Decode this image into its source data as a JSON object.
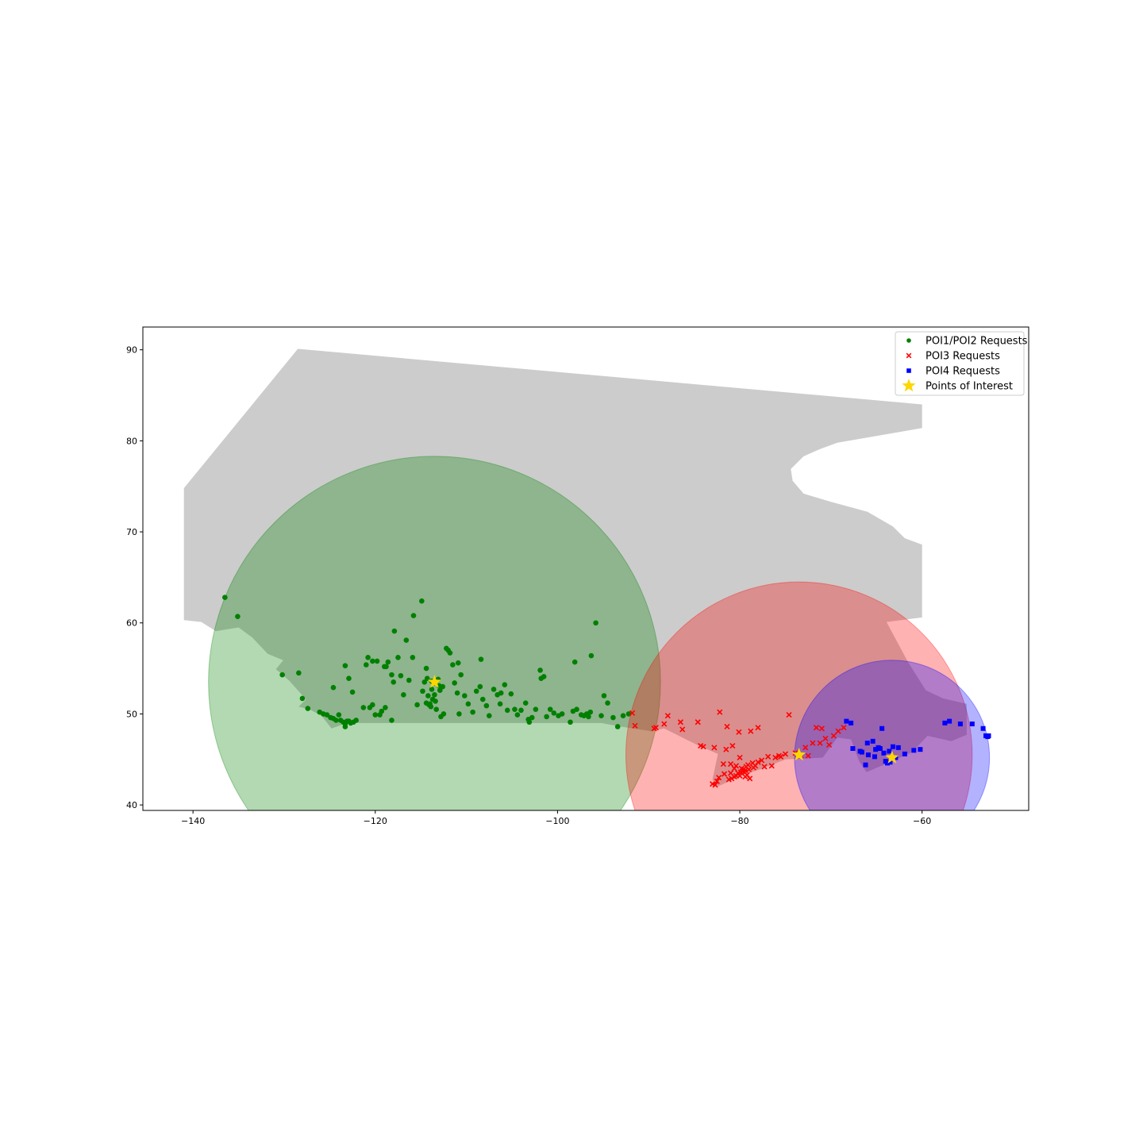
{
  "chart_data": {
    "type": "scatter",
    "title": "",
    "xlabel": "",
    "ylabel": "",
    "xlim": [
      -145.5,
      -48.3
    ],
    "ylim": [
      39.4,
      92.5
    ],
    "x_ticks": [
      -140,
      -120,
      -100,
      -80,
      -60
    ],
    "y_ticks": [
      40,
      50,
      60,
      70,
      80,
      90
    ],
    "x_tick_labels": [
      "−140",
      "−120",
      "−100",
      "−80",
      "−60"
    ],
    "y_tick_labels": [
      "40",
      "50",
      "60",
      "70",
      "80",
      "90"
    ],
    "grid": false,
    "legend_position": "upper right",
    "background_region": {
      "color": "#cccccc",
      "polygon": [
        [
          -141,
          74.8
        ],
        [
          -128.5,
          90.1
        ],
        [
          -60,
          84.0
        ],
        [
          -60,
          81.4
        ],
        [
          -69.3,
          79.8
        ],
        [
          -71.2,
          79.1
        ],
        [
          -73,
          78.3
        ],
        [
          -74.4,
          76.9
        ],
        [
          -74.2,
          75.6
        ],
        [
          -73,
          74.2
        ],
        [
          -70,
          73.3
        ],
        [
          -66,
          72.2
        ],
        [
          -63.2,
          70.6
        ],
        [
          -61.9,
          69.3
        ],
        [
          -60,
          68.6
        ],
        [
          -60,
          60.6
        ],
        [
          -63.9,
          60.1
        ],
        [
          -61.6,
          55.8
        ],
        [
          -59.6,
          52.6
        ],
        [
          -57.7,
          51.7
        ],
        [
          -55.1,
          51.1
        ],
        [
          -55.1,
          47.7
        ],
        [
          -56.8,
          47.0
        ],
        [
          -59.4,
          47.6
        ],
        [
          -61.1,
          45.8
        ],
        [
          -63.3,
          44.8
        ],
        [
          -66.1,
          43.6
        ],
        [
          -66.9,
          44.8
        ],
        [
          -67.8,
          47.2
        ],
        [
          -69.3,
          47.4
        ],
        [
          -70.9,
          45.2
        ],
        [
          -75,
          45.0
        ],
        [
          -77.5,
          44.0
        ],
        [
          -79.6,
          43.3
        ],
        [
          -82.5,
          42.0
        ],
        [
          -83,
          42.8
        ],
        [
          -82.4,
          45.6
        ],
        [
          -84.7,
          46.6
        ],
        [
          -88.3,
          48.4
        ],
        [
          -89.7,
          48.1
        ],
        [
          -93,
          48.6
        ],
        [
          -95.2,
          49.0
        ],
        [
          -123.1,
          49.0
        ],
        [
          -124.8,
          48.4
        ],
        [
          -125.9,
          49.8
        ],
        [
          -127.2,
          50.5
        ],
        [
          -128.4,
          50.8
        ],
        [
          -127.6,
          51.6
        ],
        [
          -129.4,
          53.6
        ],
        [
          -130.4,
          54.5
        ],
        [
          -130.9,
          54.9
        ],
        [
          -130.1,
          55.9
        ],
        [
          -131.8,
          56.6
        ],
        [
          -133.5,
          58.4
        ],
        [
          -135,
          59.5
        ],
        [
          -137.5,
          59.1
        ],
        [
          -139.1,
          60.1
        ],
        [
          -141,
          60.3
        ]
      ]
    },
    "coverage_circles": [
      {
        "center": [
          -113.5,
          53.5
        ],
        "radius": 24.8,
        "color": "#008000",
        "opacity": 0.3
      },
      {
        "center": [
          -73.5,
          45.5
        ],
        "radius": 19.0,
        "color": "#ff0000",
        "opacity": 0.3
      },
      {
        "center": [
          -63.3,
          45.2
        ],
        "radius": 10.7,
        "color": "#0000ff",
        "opacity": 0.3
      }
    ],
    "series": [
      {
        "name": "POI1/POI2 Requests",
        "marker": "circle",
        "color": "#008000",
        "points": [
          [
            -136.5,
            62.8
          ],
          [
            -135.1,
            60.7
          ],
          [
            -130.2,
            54.3
          ],
          [
            -128.4,
            54.5
          ],
          [
            -128.0,
            51.7
          ],
          [
            -127.4,
            50.6
          ],
          [
            -125.7,
            50.0
          ],
          [
            -125.3,
            49.9
          ],
          [
            -124.9,
            49.6
          ],
          [
            -124.6,
            49.5
          ],
          [
            -124.3,
            49.3
          ],
          [
            -124.0,
            49.9
          ],
          [
            -123.8,
            49.3
          ],
          [
            -123.5,
            49.1
          ],
          [
            -123.3,
            48.9
          ],
          [
            -123.1,
            49.2
          ],
          [
            -122.9,
            49.2
          ],
          [
            -122.7,
            49.0
          ],
          [
            -122.4,
            49.1
          ],
          [
            -122.1,
            49.3
          ],
          [
            -123.3,
            48.6
          ],
          [
            -123.3,
            55.3
          ],
          [
            -122.9,
            53.9
          ],
          [
            -122.5,
            52.4
          ],
          [
            -121.3,
            50.7
          ],
          [
            -120.6,
            50.7
          ],
          [
            -120.3,
            51.0
          ],
          [
            -120.0,
            49.9
          ],
          [
            -119.5,
            49.9
          ],
          [
            -119.3,
            50.3
          ],
          [
            -118.9,
            50.7
          ],
          [
            -118.2,
            49.3
          ],
          [
            -120.8,
            56.2
          ],
          [
            -120.3,
            55.8
          ],
          [
            -119.8,
            55.8
          ],
          [
            -119.0,
            55.2
          ],
          [
            -118.8,
            55.2
          ],
          [
            -118.6,
            55.7
          ],
          [
            -118.2,
            54.3
          ],
          [
            -118.0,
            53.5
          ],
          [
            -117.5,
            56.2
          ],
          [
            -117.2,
            54.2
          ],
          [
            -116.9,
            52.1
          ],
          [
            -116.6,
            58.1
          ],
          [
            -116.3,
            53.7
          ],
          [
            -115.8,
            60.8
          ],
          [
            -115.4,
            51.0
          ],
          [
            -114.8,
            52.5
          ],
          [
            -114.6,
            53.5
          ],
          [
            -114.4,
            51.2
          ],
          [
            -114.2,
            52.0
          ],
          [
            -114.1,
            51.0
          ],
          [
            -113.9,
            50.8
          ],
          [
            -113.8,
            53.6
          ],
          [
            -113.6,
            53.5
          ],
          [
            -113.5,
            53.4
          ],
          [
            -113.5,
            52.1
          ],
          [
            -113.4,
            51.4
          ],
          [
            -113.3,
            50.5
          ],
          [
            -113.1,
            53.8
          ],
          [
            -112.9,
            52.6
          ],
          [
            -112.8,
            49.7
          ],
          [
            -112.5,
            50.0
          ],
          [
            -112.2,
            57.2
          ],
          [
            -112.0,
            57.0
          ],
          [
            -111.8,
            56.7
          ],
          [
            -111.5,
            55.4
          ],
          [
            -111.3,
            53.4
          ],
          [
            -111.0,
            52.3
          ],
          [
            -110.8,
            50.0
          ],
          [
            -110.6,
            54.3
          ],
          [
            -110.2,
            52.0
          ],
          [
            -109.8,
            51.1
          ],
          [
            -109.3,
            50.2
          ],
          [
            -108.9,
            52.5
          ],
          [
            -108.5,
            53.0
          ],
          [
            -108.2,
            51.6
          ],
          [
            -107.8,
            50.9
          ],
          [
            -107.5,
            49.8
          ],
          [
            -107.0,
            52.7
          ],
          [
            -106.6,
            52.1
          ],
          [
            -106.3,
            51.1
          ],
          [
            -105.8,
            53.2
          ],
          [
            -105.5,
            50.4
          ],
          [
            -105.1,
            52.2
          ],
          [
            -104.7,
            50.5
          ],
          [
            -104.4,
            49.9
          ],
          [
            -104.0,
            50.4
          ],
          [
            -103.5,
            51.2
          ],
          [
            -103.1,
            49.1
          ],
          [
            -102.8,
            49.6
          ],
          [
            -102.4,
            50.5
          ],
          [
            -101.9,
            54.8
          ],
          [
            -101.5,
            54.1
          ],
          [
            -101.2,
            49.7
          ],
          [
            -100.8,
            50.5
          ],
          [
            -100.4,
            50.1
          ],
          [
            -99.9,
            49.8
          ],
          [
            -99.5,
            50.0
          ],
          [
            -98.6,
            49.1
          ],
          [
            -98.3,
            50.3
          ],
          [
            -97.9,
            50.5
          ],
          [
            -97.4,
            49.9
          ],
          [
            -97.1,
            49.8
          ],
          [
            -96.8,
            50.0
          ],
          [
            -96.6,
            49.7
          ],
          [
            -96.4,
            50.2
          ],
          [
            -95.2,
            49.8
          ],
          [
            -94.9,
            52.0
          ],
          [
            -94.5,
            51.2
          ],
          [
            -93.9,
            49.6
          ],
          [
            -93.4,
            48.6
          ],
          [
            -92.8,
            49.8
          ],
          [
            -92.2,
            50.0
          ],
          [
            -95.8,
            60.0
          ],
          [
            -96.3,
            56.4
          ],
          [
            -98.1,
            55.7
          ],
          [
            -101.8,
            53.9
          ],
          [
            -103.2,
            49.4
          ],
          [
            -106.2,
            52.3
          ],
          [
            -108.4,
            56.0
          ],
          [
            -110.9,
            55.6
          ],
          [
            -114.4,
            55.0
          ],
          [
            -114.9,
            62.4
          ],
          [
            -117.9,
            59.1
          ],
          [
            -121.0,
            55.4
          ],
          [
            -124.6,
            52.9
          ],
          [
            -126.1,
            50.2
          ],
          [
            -115.9,
            56.2
          ],
          [
            -113.0,
            53.1
          ],
          [
            -113.8,
            52.7
          ],
          [
            -114.0,
            51.1
          ],
          [
            -113.7,
            51.6
          ],
          [
            -112.6,
            53.0
          ],
          [
            -114.3,
            53.9
          ]
        ]
      },
      {
        "name": "POI3 Requests",
        "marker": "x",
        "color": "#ff0000",
        "points": [
          [
            -91.8,
            50.1
          ],
          [
            -91.5,
            48.7
          ],
          [
            -89.4,
            48.4
          ],
          [
            -89.2,
            48.5
          ],
          [
            -88.3,
            48.9
          ],
          [
            -87.9,
            49.8
          ],
          [
            -86.5,
            49.1
          ],
          [
            -86.3,
            48.3
          ],
          [
            -84.6,
            49.1
          ],
          [
            -84.3,
            46.5
          ],
          [
            -84.0,
            46.4
          ],
          [
            -83.0,
            42.3
          ],
          [
            -82.7,
            42.2
          ],
          [
            -82.5,
            42.6
          ],
          [
            -82.3,
            43.0
          ],
          [
            -82.8,
            46.3
          ],
          [
            -82.2,
            50.2
          ],
          [
            -81.8,
            44.5
          ],
          [
            -81.5,
            46.1
          ],
          [
            -81.4,
            48.6
          ],
          [
            -81.2,
            42.8
          ],
          [
            -81.0,
            43.5
          ],
          [
            -80.8,
            46.5
          ],
          [
            -80.6,
            43.1
          ],
          [
            -80.4,
            44.3
          ],
          [
            -80.2,
            43.5
          ],
          [
            -80.1,
            48.0
          ],
          [
            -80.0,
            43.2
          ],
          [
            -79.9,
            43.6
          ],
          [
            -79.7,
            43.7
          ],
          [
            -79.6,
            43.9
          ],
          [
            -79.5,
            43.6
          ],
          [
            -79.4,
            43.8
          ],
          [
            -79.3,
            44.2
          ],
          [
            -79.2,
            43.3
          ],
          [
            -79.0,
            43.9
          ],
          [
            -78.9,
            42.9
          ],
          [
            -78.8,
            48.1
          ],
          [
            -78.6,
            44.6
          ],
          [
            -78.3,
            44.3
          ],
          [
            -78.0,
            48.5
          ],
          [
            -77.6,
            44.9
          ],
          [
            -77.3,
            44.2
          ],
          [
            -76.9,
            45.3
          ],
          [
            -76.5,
            44.3
          ],
          [
            -76.1,
            45.2
          ],
          [
            -75.7,
            45.4
          ],
          [
            -75.5,
            45.3
          ],
          [
            -75.0,
            45.6
          ],
          [
            -74.6,
            49.9
          ],
          [
            -73.9,
            45.7
          ],
          [
            -73.6,
            45.5
          ],
          [
            -73.3,
            45.4
          ],
          [
            -72.8,
            46.3
          ],
          [
            -72.5,
            45.4
          ],
          [
            -72.0,
            46.8
          ],
          [
            -71.6,
            48.5
          ],
          [
            -71.2,
            46.8
          ],
          [
            -71.0,
            48.4
          ],
          [
            -70.6,
            47.3
          ],
          [
            -70.2,
            46.6
          ],
          [
            -69.7,
            47.6
          ],
          [
            -69.2,
            48.1
          ],
          [
            -68.6,
            48.5
          ],
          [
            -79.8,
            44.0
          ],
          [
            -80.4,
            43.2
          ],
          [
            -79.4,
            43.1
          ],
          [
            -78.5,
            44.1
          ],
          [
            -80.0,
            45.2
          ],
          [
            -81.0,
            44.5
          ],
          [
            -80.6,
            44.0
          ],
          [
            -79.1,
            44.4
          ],
          [
            -78.0,
            44.7
          ],
          [
            -80.9,
            42.9
          ],
          [
            -81.7,
            43.4
          ]
        ]
      },
      {
        "name": "POI4 Requests",
        "marker": "square",
        "color": "#0000ff",
        "points": [
          [
            -68.3,
            49.2
          ],
          [
            -67.8,
            49.0
          ],
          [
            -67.6,
            46.2
          ],
          [
            -66.8,
            45.9
          ],
          [
            -66.6,
            45.8
          ],
          [
            -66.2,
            44.4
          ],
          [
            -65.9,
            45.5
          ],
          [
            -65.4,
            47.0
          ],
          [
            -65.1,
            46.1
          ],
          [
            -64.8,
            46.3
          ],
          [
            -64.6,
            46.2
          ],
          [
            -64.4,
            48.4
          ],
          [
            -64.2,
            45.7
          ],
          [
            -64.0,
            44.8
          ],
          [
            -63.8,
            44.6
          ],
          [
            -63.6,
            45.9
          ],
          [
            -63.5,
            44.7
          ],
          [
            -63.2,
            46.4
          ],
          [
            -62.9,
            45.2
          ],
          [
            -62.6,
            46.3
          ],
          [
            -61.9,
            45.6
          ],
          [
            -60.9,
            46.0
          ],
          [
            -60.2,
            46.1
          ],
          [
            -57.5,
            49.0
          ],
          [
            -57.0,
            49.2
          ],
          [
            -55.8,
            48.9
          ],
          [
            -54.5,
            48.9
          ],
          [
            -53.3,
            48.4
          ],
          [
            -53.0,
            47.6
          ],
          [
            -52.8,
            47.5
          ],
          [
            -52.7,
            47.6
          ],
          [
            -66.0,
            46.8
          ],
          [
            -65.2,
            45.3
          ]
        ]
      },
      {
        "name": "Points of Interest",
        "marker": "star",
        "color": "#ffd700",
        "points": [
          [
            -113.5,
            53.5
          ],
          [
            -73.5,
            45.5
          ],
          [
            -63.3,
            45.2
          ]
        ]
      }
    ]
  }
}
